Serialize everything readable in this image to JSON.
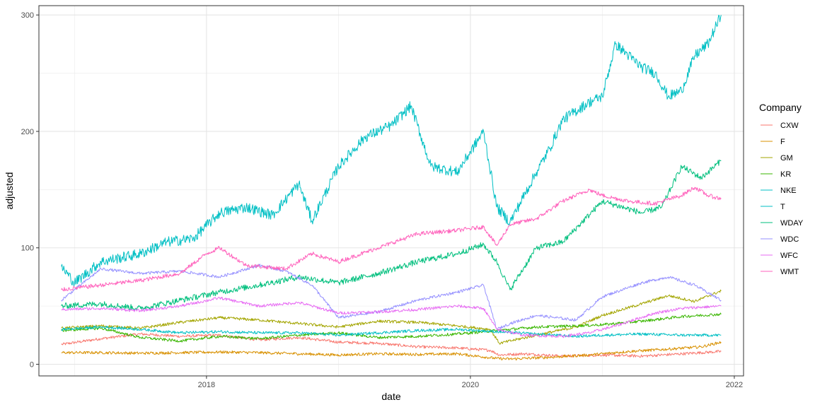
{
  "chart_data": {
    "type": "line",
    "title": "",
    "xlabel": "date",
    "ylabel": "adjusted",
    "xlim": [
      2016.73,
      2022.07
    ],
    "ylim": [
      -10,
      308
    ],
    "x_ticks": [
      2018,
      2020,
      2022
    ],
    "x_tick_labels": [
      "2018",
      "2020",
      "2022"
    ],
    "y_ticks": [
      0,
      100,
      200,
      300
    ],
    "y_tick_labels": [
      "0",
      "100",
      "200",
      "300"
    ],
    "grid": true,
    "legend": {
      "title": "Company",
      "position": "right"
    },
    "series": [
      {
        "name": "CXW",
        "color": "#F8766D",
        "x": [
          2016.9,
          2017.2,
          2017.5,
          2017.8,
          2018.1,
          2018.4,
          2018.7,
          2019.0,
          2019.3,
          2019.6,
          2019.9,
          2020.15,
          2020.22,
          2020.4,
          2020.7,
          2021.0,
          2021.3,
          2021.6,
          2021.9
        ],
        "values": [
          17,
          22,
          26,
          24,
          25,
          21,
          23,
          19,
          18,
          15,
          14,
          12,
          8,
          9,
          7,
          8,
          7,
          9,
          11
        ]
      },
      {
        "name": "F",
        "color": "#D89000",
        "x": [
          2016.9,
          2017.2,
          2017.5,
          2017.8,
          2018.1,
          2018.4,
          2018.7,
          2019.0,
          2019.3,
          2019.6,
          2019.9,
          2020.2,
          2020.3,
          2020.6,
          2020.9,
          2021.2,
          2021.5,
          2021.75,
          2021.9
        ],
        "values": [
          10,
          10,
          9.5,
          10,
          10.5,
          10,
          9,
          8,
          9,
          8.5,
          9,
          5,
          4.5,
          6,
          8,
          11,
          13,
          15,
          19
        ]
      },
      {
        "name": "GM",
        "color": "#A3A500",
        "x": [
          2016.9,
          2017.2,
          2017.5,
          2017.8,
          2018.1,
          2018.4,
          2018.7,
          2019.0,
          2019.3,
          2019.6,
          2019.9,
          2020.15,
          2020.22,
          2020.5,
          2020.8,
          2021.0,
          2021.3,
          2021.5,
          2021.7,
          2021.9
        ],
        "values": [
          31,
          33,
          31,
          36,
          40,
          38,
          35,
          32,
          37,
          36,
          33,
          30,
          18,
          25,
          32,
          42,
          52,
          59,
          54,
          63
        ]
      },
      {
        "name": "KR",
        "color": "#39B600",
        "x": [
          2016.9,
          2017.2,
          2017.5,
          2017.8,
          2018.1,
          2018.4,
          2018.7,
          2019.0,
          2019.3,
          2019.6,
          2019.9,
          2020.2,
          2020.5,
          2020.8,
          2021.0,
          2021.3,
          2021.6,
          2021.9
        ],
        "values": [
          29,
          31,
          23,
          20,
          24,
          22,
          25,
          27,
          23,
          24,
          26,
          29,
          32,
          33,
          34,
          37,
          41,
          43
        ]
      },
      {
        "name": "NKE",
        "color": "#00BFC4",
        "x": [
          2016.9,
          2017.0,
          2017.2,
          2017.5,
          2017.7,
          2017.9,
          2018.1,
          2018.3,
          2018.5,
          2018.7,
          2018.8,
          2019.0,
          2019.2,
          2019.4,
          2019.55,
          2019.7,
          2019.9,
          2020.1,
          2020.2,
          2020.3,
          2020.5,
          2020.6,
          2020.7,
          2020.9,
          2021.0,
          2021.1,
          2021.3,
          2021.4,
          2021.5,
          2021.6,
          2021.7,
          2021.8,
          2021.9
        ],
        "values": [
          84,
          70,
          88,
          95,
          105,
          108,
          130,
          135,
          128,
          155,
          123,
          170,
          195,
          205,
          222,
          170,
          165,
          200,
          135,
          122,
          165,
          185,
          210,
          225,
          230,
          275,
          255,
          250,
          230,
          235,
          265,
          275,
          300
        ]
      },
      {
        "name": "T",
        "color": "#00BFC4",
        "x": [
          2016.9,
          2017.2,
          2017.5,
          2017.8,
          2018.1,
          2018.4,
          2018.7,
          2019.0,
          2019.3,
          2019.6,
          2019.9,
          2020.2,
          2020.5,
          2020.8,
          2021.0,
          2021.3,
          2021.6,
          2021.9
        ],
        "values": [
          30,
          32,
          30,
          27,
          28,
          27,
          27,
          25,
          27,
          29,
          30,
          28,
          26,
          24,
          25,
          26,
          25,
          25
        ]
      },
      {
        "name": "WDAY",
        "color": "#00BF7D",
        "x": [
          2016.9,
          2017.2,
          2017.5,
          2017.8,
          2018.1,
          2018.4,
          2018.7,
          2019.0,
          2019.3,
          2019.6,
          2019.9,
          2020.1,
          2020.2,
          2020.3,
          2020.5,
          2020.7,
          2021.0,
          2021.3,
          2021.45,
          2021.6,
          2021.75,
          2021.9
        ],
        "values": [
          50,
          52,
          48,
          55,
          62,
          68,
          75,
          70,
          78,
          88,
          95,
          103,
          88,
          64,
          100,
          105,
          140,
          130,
          135,
          170,
          160,
          175
        ]
      },
      {
        "name": "WDC",
        "color": "#9590FF",
        "x": [
          2016.9,
          2017.2,
          2017.5,
          2017.8,
          2018.1,
          2018.4,
          2018.6,
          2018.8,
          2019.0,
          2019.3,
          2019.6,
          2019.9,
          2020.1,
          2020.2,
          2020.3,
          2020.5,
          2020.8,
          2021.0,
          2021.3,
          2021.5,
          2021.7,
          2021.9
        ],
        "values": [
          55,
          82,
          78,
          80,
          75,
          85,
          80,
          68,
          40,
          45,
          55,
          62,
          68,
          30,
          35,
          42,
          38,
          58,
          70,
          75,
          68,
          55
        ]
      },
      {
        "name": "WFC",
        "color": "#E76BF3",
        "x": [
          2016.9,
          2017.2,
          2017.5,
          2017.8,
          2018.1,
          2018.4,
          2018.7,
          2019.0,
          2019.3,
          2019.6,
          2019.9,
          2020.1,
          2020.2,
          2020.4,
          2020.7,
          2020.9,
          2021.1,
          2021.4,
          2021.6,
          2021.9
        ],
        "values": [
          47,
          48,
          46,
          50,
          57,
          50,
          53,
          44,
          45,
          47,
          50,
          48,
          30,
          25,
          24,
          27,
          33,
          44,
          48,
          50
        ]
      },
      {
        "name": "WMT",
        "color": "#FF62BC",
        "x": [
          2016.9,
          2017.2,
          2017.5,
          2017.8,
          2018.0,
          2018.1,
          2018.3,
          2018.6,
          2018.8,
          2019.0,
          2019.3,
          2019.6,
          2019.9,
          2020.1,
          2020.2,
          2020.3,
          2020.5,
          2020.7,
          2020.9,
          2021.0,
          2021.2,
          2021.4,
          2021.6,
          2021.7,
          2021.8,
          2021.9
        ],
        "values": [
          64,
          68,
          72,
          78,
          95,
          100,
          85,
          82,
          95,
          88,
          100,
          112,
          115,
          118,
          102,
          120,
          125,
          140,
          150,
          145,
          140,
          138,
          145,
          152,
          145,
          142
        ]
      }
    ]
  }
}
